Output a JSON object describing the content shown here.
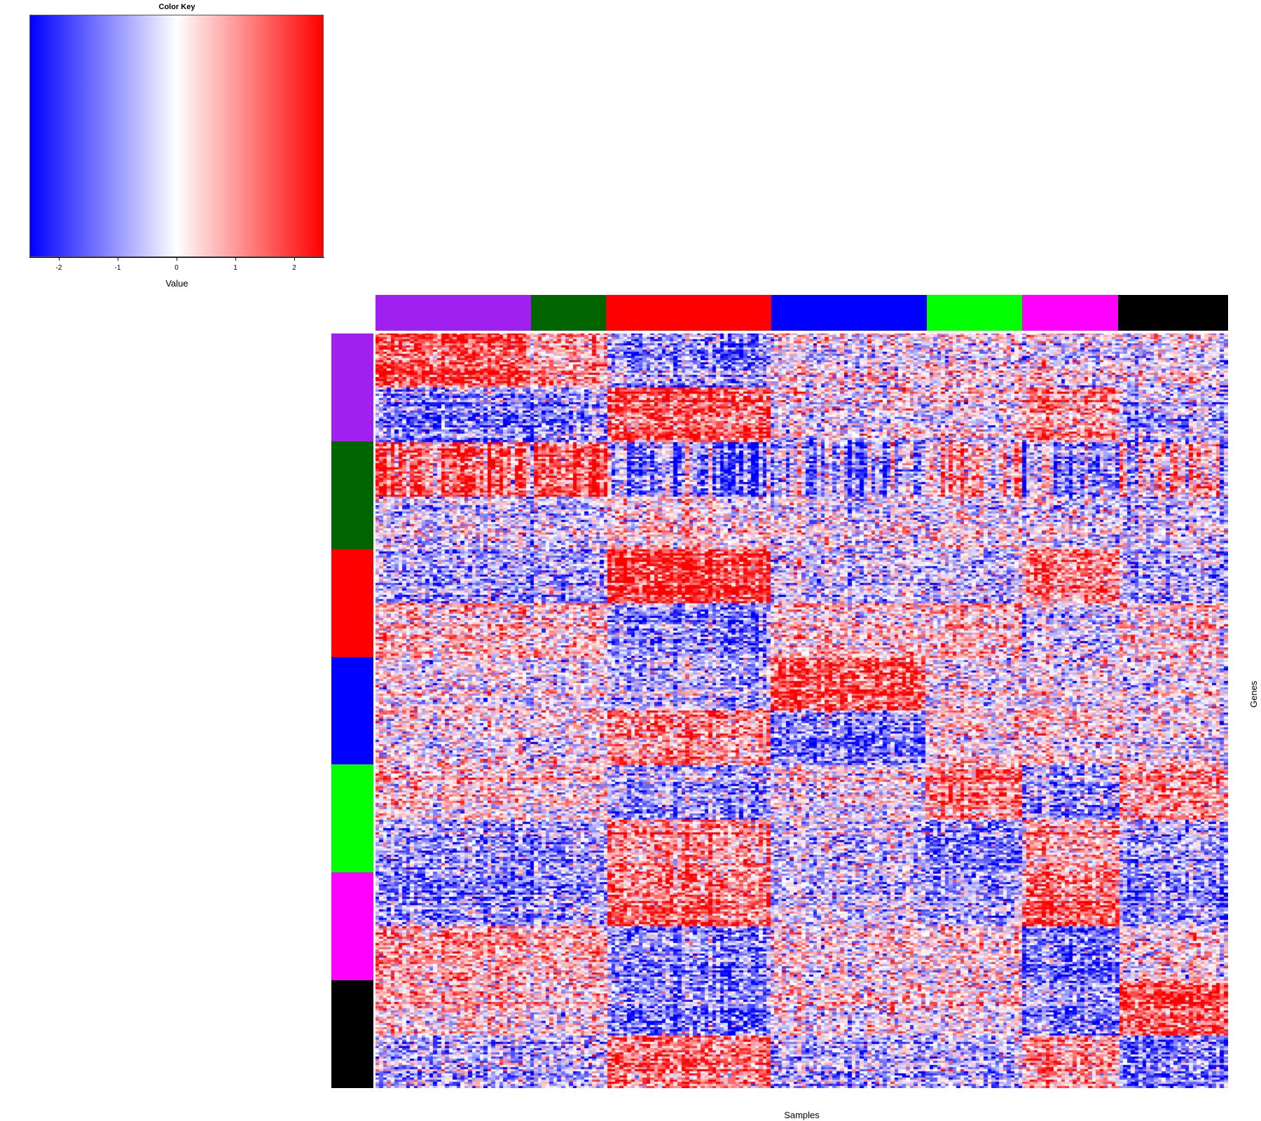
{
  "chart_data": {
    "type": "heatmap",
    "title": "",
    "xlabel": "Samples",
    "ylabel": "Genes",
    "color_key": {
      "title": "Color Key",
      "xlabel": "Value",
      "range": [
        -2.5,
        2.5
      ],
      "ticks": [
        -2,
        -1,
        0,
        1,
        2
      ],
      "tick_labels": [
        "-2",
        "-1",
        "0",
        "1",
        "2"
      ],
      "low_color": "#0000ff",
      "mid_color": "#ffffff",
      "high_color": "#ff0000"
    },
    "sample_groups": [
      {
        "color": "#a020f0",
        "relative_size": 259
      },
      {
        "color": "#006400",
        "relative_size": 126
      },
      {
        "color": "#ff0000",
        "relative_size": 276
      },
      {
        "color": "#0000ff",
        "relative_size": 259
      },
      {
        "color": "#00ff00",
        "relative_size": 159
      },
      {
        "color": "#ff00ff",
        "relative_size": 160
      },
      {
        "color": "#000000",
        "relative_size": 184
      }
    ],
    "gene_groups": [
      {
        "color": "#a020f0"
      },
      {
        "color": "#006400"
      },
      {
        "color": "#ff0000"
      },
      {
        "color": "#0000ff"
      },
      {
        "color": "#00ff00"
      },
      {
        "color": "#ff00ff"
      },
      {
        "color": "#000000"
      }
    ],
    "approx_block_means": [
      [
        1.8,
        1.0,
        -1.0,
        0.0,
        0.0,
        0.0,
        0.0
      ],
      [
        -1.2,
        -1.0,
        1.8,
        0.0,
        0.0,
        1.2,
        -0.5
      ],
      [
        1.4,
        1.5,
        -1.2,
        -0.9,
        0.2,
        -0.7,
        0.5
      ],
      [
        -0.2,
        -0.3,
        0.5,
        0.0,
        0.0,
        0.0,
        -0.2
      ],
      [
        -1.0,
        -1.0,
        2.0,
        -0.6,
        -0.8,
        1.2,
        -0.8
      ],
      [
        0.5,
        0.4,
        -1.2,
        0.4,
        0.4,
        -0.4,
        0.4
      ],
      [
        0.0,
        -0.2,
        -0.6,
        1.8,
        -0.2,
        0.0,
        0.0
      ],
      [
        0.1,
        0.1,
        1.2,
        -1.2,
        0.2,
        0.5,
        0.1
      ],
      [
        0.5,
        0.3,
        -0.8,
        0.1,
        1.3,
        -0.8,
        1.2
      ],
      [
        -0.8,
        -0.8,
        1.2,
        -0.3,
        -1.3,
        1.0,
        -0.6
      ],
      [
        -1.0,
        -0.8,
        1.6,
        -0.3,
        -0.8,
        1.8,
        -0.9
      ],
      [
        1.0,
        0.8,
        -1.0,
        0.3,
        0.3,
        -1.2,
        0.4
      ],
      [
        0.6,
        0.3,
        -1.2,
        0.2,
        0.1,
        -1.0,
        1.9
      ],
      [
        -0.6,
        -0.5,
        1.5,
        -0.6,
        -0.7,
        1.2,
        -1.1
      ]
    ]
  }
}
